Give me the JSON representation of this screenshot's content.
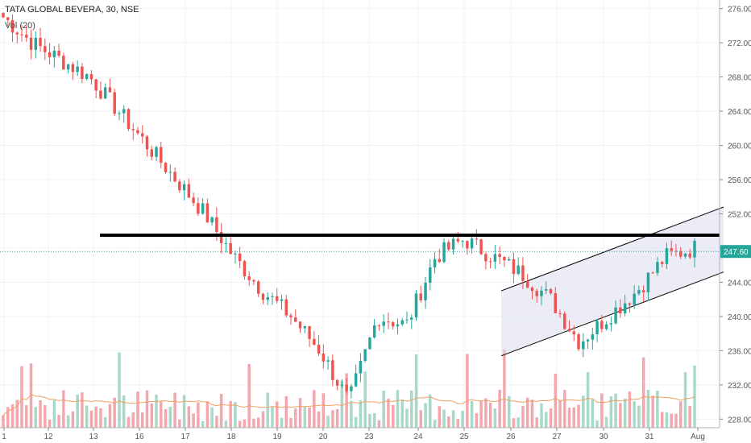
{
  "header": {
    "title": "TATA GLOBAL BEVERA, 30, NSE",
    "volume_label": "Vol (20)"
  },
  "price_label": "247.60",
  "colors": {
    "up": "#26a69a",
    "down": "#ef5350",
    "up_volume": "#a8d8c8",
    "down_volume": "#f3a7ad",
    "volume_ma": "#f0a060",
    "price_line": "#26a69a",
    "channel_fill": "#dcdcf0"
  },
  "chart_data": {
    "type": "candlestick",
    "title": "TATA GLOBAL BEVERA, 30, NSE",
    "ylim": [
      227,
      277
    ],
    "y_ticks": [
      "276.00",
      "272.00",
      "268.00",
      "264.00",
      "260.00",
      "256.00",
      "252.00",
      "248.00",
      "244.00",
      "240.00",
      "236.00",
      "232.00",
      "228.00"
    ],
    "x_tick_labels": [
      "1",
      "12",
      "13",
      "16",
      "17",
      "18",
      "19",
      "20",
      "23",
      "24",
      "25",
      "26",
      "27",
      "30",
      "31",
      "Aug"
    ],
    "last_price": 247.6,
    "resistance_level": 249.5,
    "channel": {
      "upper": [
        [
          243.0,
          252.8
        ]
      ],
      "lower": [
        [
          235.4,
          245.2
        ]
      ]
    },
    "key_prices": [
      275,
      272,
      270,
      268,
      264,
      260,
      256,
      252,
      247,
      243,
      240,
      236,
      230,
      240,
      239,
      247,
      249,
      247,
      245,
      242,
      237,
      240,
      243,
      247,
      248
    ],
    "volume_ma_note": "Vol (20)"
  }
}
